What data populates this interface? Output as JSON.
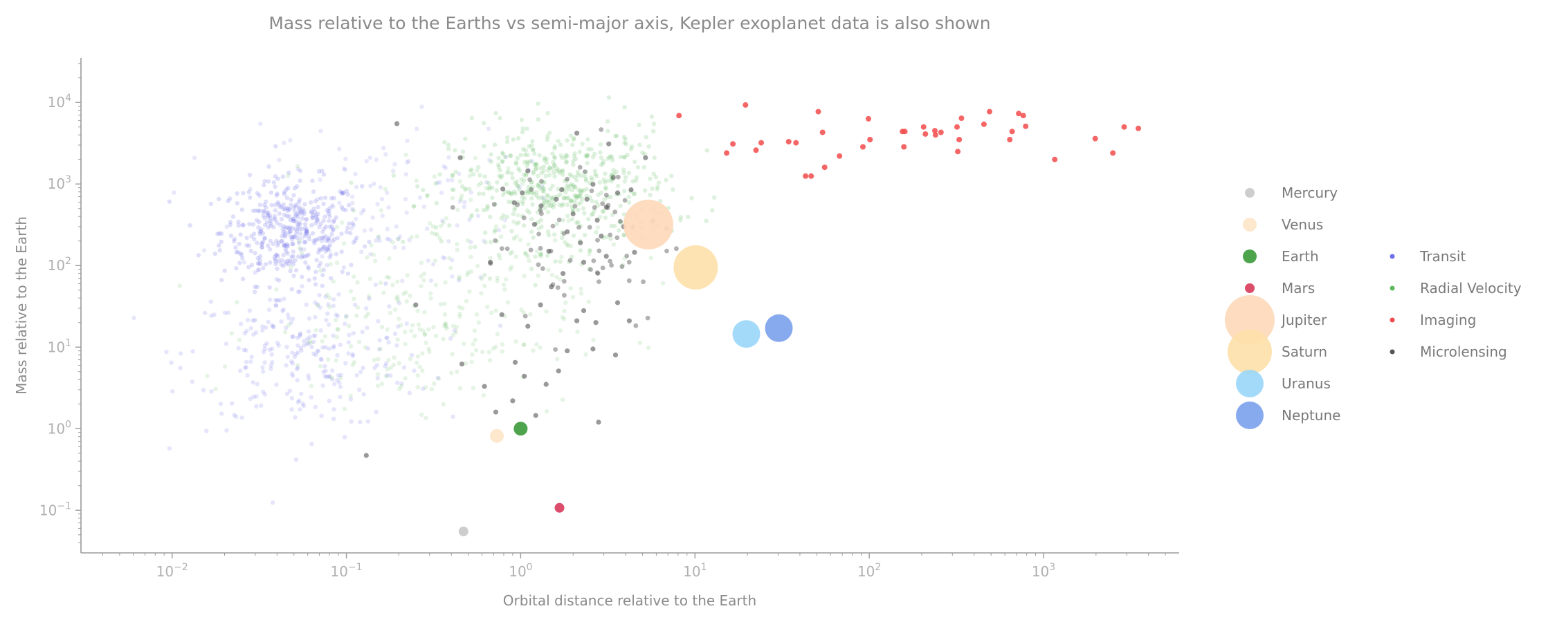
{
  "chart_data": {
    "type": "scatter",
    "title": "Mass relative to the Earths vs semi-major axis, Kepler exoplanet data is also shown",
    "xlabel": "Orbital distance relative to the Earth",
    "ylabel": "Mass relative to the Earth",
    "xscale": "log",
    "yscale": "log",
    "xlim": [
      0.003,
      6000
    ],
    "ylim": [
      0.03,
      35000
    ],
    "x_tick_labels": [
      {
        "base": "10",
        "exp": "−2",
        "value": 0.01
      },
      {
        "base": "10",
        "exp": "−1",
        "value": 0.1
      },
      {
        "base": "10",
        "exp": "0",
        "value": 1
      },
      {
        "base": "10",
        "exp": "1",
        "value": 10
      },
      {
        "base": "10",
        "exp": "2",
        "value": 100
      },
      {
        "base": "10",
        "exp": "3",
        "value": 1000
      }
    ],
    "y_tick_labels": [
      {
        "base": "10",
        "exp": "−1",
        "value": 0.1
      },
      {
        "base": "10",
        "exp": "0",
        "value": 1
      },
      {
        "base": "10",
        "exp": "1",
        "value": 10
      },
      {
        "base": "10",
        "exp": "2",
        "value": 100
      },
      {
        "base": "10",
        "exp": "3",
        "value": 1000
      },
      {
        "base": "10",
        "exp": "4",
        "value": 10000
      }
    ],
    "grid": false,
    "legend_placement": "right",
    "planets": [
      {
        "name": "Mercury",
        "x": 0.47,
        "y": 0.055,
        "color": "#c8c8c8",
        "size": 7
      },
      {
        "name": "Venus",
        "x": 0.73,
        "y": 0.815,
        "color": "#fde6c8",
        "size": 10
      },
      {
        "name": "Earth",
        "x": 1.0,
        "y": 1.0,
        "color": "#3a9a3a",
        "size": 10
      },
      {
        "name": "Mars",
        "x": 1.67,
        "y": 0.107,
        "color": "#d73a5a",
        "size": 7
      },
      {
        "name": "Jupiter",
        "x": 5.4,
        "y": 318,
        "color": "#fdd8b8",
        "size": 36
      },
      {
        "name": "Saturn",
        "x": 10.1,
        "y": 95,
        "color": "#fde0a8",
        "size": 32
      },
      {
        "name": "Uranus",
        "x": 19.7,
        "y": 14.5,
        "color": "#9ad6f8",
        "size": 20
      },
      {
        "name": "Neptune",
        "x": 30.3,
        "y": 17.1,
        "color": "#7aa0ec",
        "size": 20
      }
    ],
    "exoplanet_series": [
      {
        "name": "Transit",
        "color": "#6f6fe8"
      },
      {
        "name": "Radial Velocity",
        "color": "#5cb85c"
      },
      {
        "name": "Imaging",
        "color": "#f24a4a"
      },
      {
        "name": "Microlensing",
        "color": "#555555"
      }
    ],
    "imaging_points": [
      [
        8.1,
        6900
      ],
      [
        19.5,
        9300
      ],
      [
        15.2,
        2400
      ],
      [
        16.5,
        3100
      ],
      [
        22.4,
        2600
      ],
      [
        24.0,
        3200
      ],
      [
        34.5,
        3300
      ],
      [
        38.0,
        3200
      ],
      [
        43.1,
        1250
      ],
      [
        46.4,
        1250
      ],
      [
        51.0,
        7700
      ],
      [
        54.0,
        4300
      ],
      [
        55.5,
        1600
      ],
      [
        67.5,
        2200
      ],
      [
        92.0,
        2850
      ],
      [
        99.0,
        6300
      ],
      [
        101.0,
        3500
      ],
      [
        155.0,
        4400
      ],
      [
        158.0,
        2850
      ],
      [
        160.0,
        4400
      ],
      [
        205.0,
        5000
      ],
      [
        210.0,
        4100
      ],
      [
        238.0,
        4500
      ],
      [
        240.0,
        4000
      ],
      [
        258.0,
        4300
      ],
      [
        319.0,
        5000
      ],
      [
        322.0,
        2500
      ],
      [
        328.0,
        3500
      ],
      [
        338.0,
        6400
      ],
      [
        455.0,
        5400
      ],
      [
        490.0,
        7700
      ],
      [
        640.0,
        3500
      ],
      [
        660.0,
        4400
      ],
      [
        720.0,
        7300
      ],
      [
        765.0,
        6900
      ],
      [
        790.0,
        5100
      ],
      [
        1160.0,
        2000
      ],
      [
        1980.0,
        3600
      ],
      [
        2500.0,
        2400
      ],
      [
        2900.0,
        5000
      ],
      [
        3500.0,
        4800
      ]
    ],
    "microlensing_points": [
      [
        0.79,
        870
      ],
      [
        0.92,
        590
      ],
      [
        1.02,
        780
      ],
      [
        1.1,
        1450
      ],
      [
        1.2,
        320
      ],
      [
        1.31,
        540
      ],
      [
        1.45,
        150
      ],
      [
        1.6,
        650
      ],
      [
        1.72,
        850
      ],
      [
        1.85,
        260
      ],
      [
        2.0,
        430
      ],
      [
        2.1,
        21
      ],
      [
        2.2,
        190
      ],
      [
        2.4,
        650
      ],
      [
        2.6,
        990
      ],
      [
        2.7,
        20
      ],
      [
        2.75,
        360
      ],
      [
        2.9,
        230
      ],
      [
        3.1,
        520
      ],
      [
        3.4,
        1200
      ],
      [
        3.6,
        780
      ],
      [
        3.9,
        300
      ],
      [
        4.3,
        850
      ],
      [
        4.5,
        145
      ],
      [
        1.22,
        1.45
      ],
      [
        0.93,
        6.5
      ],
      [
        1.4,
        3.5
      ],
      [
        1.85,
        9
      ],
      [
        2.6,
        9.5
      ],
      [
        3.5,
        8
      ],
      [
        0.25,
        33
      ],
      [
        0.46,
        6.2
      ],
      [
        0.78,
        25
      ],
      [
        1.1,
        18
      ],
      [
        1.3,
        33
      ],
      [
        1.5,
        55
      ],
      [
        1.75,
        80
      ],
      [
        2.3,
        110
      ],
      [
        3.1,
        130
      ],
      [
        3.6,
        35
      ],
      [
        4.2,
        21
      ],
      [
        0.67,
        110
      ],
      [
        0.9,
        2.2
      ],
      [
        1.05,
        4.4
      ],
      [
        2.8,
        1.2
      ],
      [
        0.72,
        1.6
      ],
      [
        0.13,
        0.47
      ],
      [
        0.195,
        5500
      ],
      [
        0.62,
        3.3
      ],
      [
        2.3,
        28
      ],
      [
        1.65,
        5.1
      ],
      [
        0.45,
        2100
      ],
      [
        5.2,
        2100
      ],
      [
        3.2,
        3100
      ],
      [
        2.1,
        4200
      ]
    ]
  }
}
